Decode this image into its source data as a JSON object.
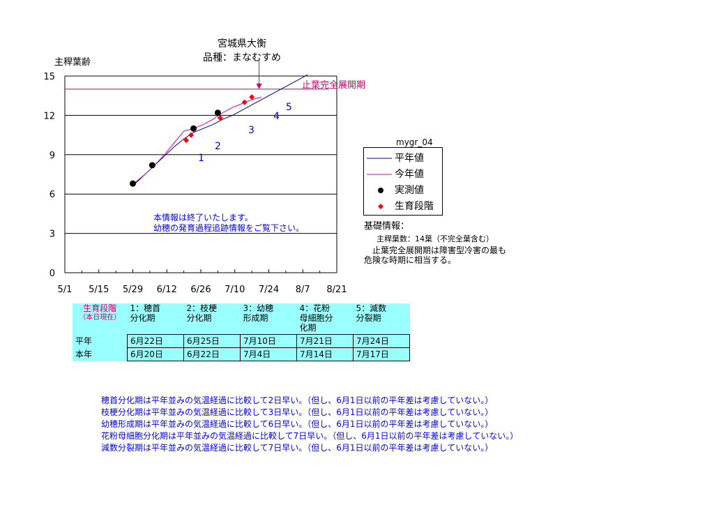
{
  "chart_data": {
    "type": "line",
    "title": "宮城県大衡",
    "subtitle": "品種：まなむすめ",
    "ylabel": "主稈葉齢",
    "xlabel": "",
    "ylim": [
      0,
      15
    ],
    "yticks": [
      "0",
      "3",
      "6",
      "9",
      "12",
      "15"
    ],
    "xticks": [
      "5/1",
      "5/15",
      "5/29",
      "6/12",
      "6/26",
      "7/10",
      "7/24",
      "8/7",
      "8/21"
    ],
    "xticks_day": [
      0,
      14,
      28,
      42,
      56,
      70,
      84,
      98,
      112
    ],
    "grid": "horizontal",
    "series": [
      {
        "name": "平年値",
        "color": "#000080",
        "style": "line",
        "x": [
          29,
          33,
          37,
          41,
          45,
          49,
          53,
          57,
          61,
          65,
          69,
          73,
          77,
          81,
          85,
          89,
          93,
          97,
          100
        ],
        "y": [
          6.8,
          7.5,
          8.2,
          8.9,
          9.6,
          10.2,
          10.7,
          11.0,
          11.3,
          11.7,
          12.0,
          12.4,
          12.8,
          13.2,
          13.6,
          14.0,
          14.4,
          14.8,
          15.1
        ]
      },
      {
        "name": "今年値",
        "color": "#cc00cc",
        "style": "line",
        "x": [
          29,
          33,
          37,
          41,
          45,
          49,
          53,
          57,
          61,
          65,
          69,
          73,
          77,
          81
        ],
        "y": [
          6.9,
          7.5,
          8.2,
          9.0,
          9.9,
          10.8,
          11.0,
          11.3,
          11.7,
          12.2,
          12.6,
          12.9,
          13.2,
          13.4
        ]
      },
      {
        "name": "実測値",
        "color": "#000000",
        "style": "point",
        "x": [
          28,
          36,
          53,
          63
        ],
        "y": [
          6.8,
          8.2,
          11.0,
          12.2
        ]
      },
      {
        "name": "生育段階",
        "color": "#ff0000",
        "style": "diamond",
        "x": [
          50,
          52,
          64,
          74,
          77
        ],
        "y": [
          10.1,
          10.5,
          11.8,
          13.0,
          13.4
        ],
        "labels": [
          "1",
          "2",
          "3",
          "4",
          "5"
        ]
      }
    ],
    "reference_line": {
      "y": 14,
      "label": "止葉完全展開期",
      "color": "#cc0066"
    },
    "arrow_marker_day": 80,
    "legend": {
      "title": "mygr_04",
      "placement": "right"
    }
  },
  "info": {
    "line1": "本情報は終了いたします。",
    "line2": "幼穂の発育過程追跡情報をご覧下さい。"
  },
  "basis": {
    "title": "基礎情報：",
    "leaf_count": "主稈葉数：14葉（不完全葉含む）",
    "note1": "止葉完全展開期は障害型冷害の最も",
    "note2": "危険な時期に相当する。"
  },
  "stage_table": {
    "header_label": "生育段階",
    "header_sub": "（本日現在）",
    "columns": [
      {
        "l1": "1：穂首",
        "l2": "分化期",
        "l3": ""
      },
      {
        "l1": "2：枝梗",
        "l2": "分化期",
        "l3": ""
      },
      {
        "l1": "3：幼穂",
        "l2": "形成期",
        "l3": ""
      },
      {
        "l1": "4：花粉",
        "l2": "母細胞分",
        "l3": "化期"
      },
      {
        "l1": "5：減数",
        "l2": "分裂期",
        "l3": ""
      }
    ],
    "rows": [
      {
        "label": "平年",
        "values": [
          "6月22日",
          "6月25日",
          "7月10日",
          "7月21日",
          "7月24日"
        ]
      },
      {
        "label": "本年",
        "values": [
          "6月20日",
          "6月22日",
          "7月4日",
          "7月14日",
          "7月17日"
        ]
      }
    ]
  },
  "notes": [
    "穂首分化期は平年並みの気温経過に比較して2日早い。（但し、6月1日以前の平年差は考慮していない。）",
    "枝梗分化期は平年並みの気温経過に比較して3日早い。（但し、6月1日以前の平年差は考慮していない。）",
    "幼穂形成期は平年並みの気温経過に比較して6日早い。（但し、6月1日以前の平年差は考慮していない。）",
    "花粉母細胞分化期は平年並みの気温経過に比較して7日早い。（但し、6月1日以前の平年差は考慮していない。）",
    "減数分裂期は平年並みの気温経過に比較して7日早い。（但し、6月1日以前の平年差は考慮していない。）"
  ]
}
